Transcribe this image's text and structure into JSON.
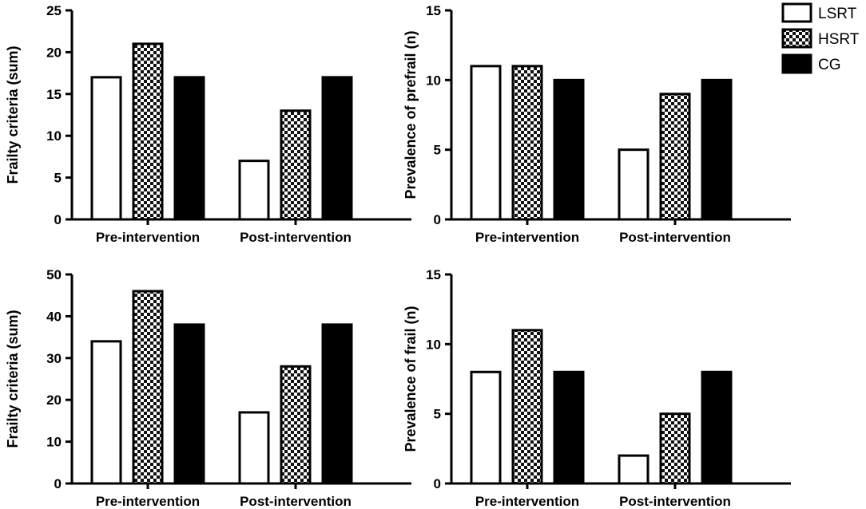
{
  "legend": [
    {
      "name": "LSRT",
      "pattern": "white"
    },
    {
      "name": "HSRT",
      "pattern": "checker"
    },
    {
      "name": "CG",
      "pattern": "black"
    }
  ],
  "chart_data": [
    {
      "type": "bar",
      "categories": [
        "Pre-intervention",
        "Post-intervention"
      ],
      "series": [
        {
          "name": "LSRT",
          "values": [
            17,
            7
          ]
        },
        {
          "name": "HSRT",
          "values": [
            21,
            13
          ]
        },
        {
          "name": "CG",
          "values": [
            17,
            17
          ]
        }
      ],
      "ylabel": "Frailty criteria (sum)",
      "xlabel": "",
      "ylim": [
        0,
        25
      ],
      "yticks": [
        0,
        5,
        10,
        15,
        20,
        25
      ],
      "grid": false
    },
    {
      "type": "bar",
      "categories": [
        "Pre-intervention",
        "Post-intervention"
      ],
      "series": [
        {
          "name": "LSRT",
          "values": [
            11,
            5
          ]
        },
        {
          "name": "HSRT",
          "values": [
            11,
            9
          ]
        },
        {
          "name": "CG",
          "values": [
            10,
            10
          ]
        }
      ],
      "ylabel": "Prevalence of prefrail (n)",
      "xlabel": "",
      "ylim": [
        0,
        15
      ],
      "yticks": [
        0,
        5,
        10,
        15
      ],
      "grid": false
    },
    {
      "type": "bar",
      "categories": [
        "Pre-intervention",
        "Post-intervention"
      ],
      "series": [
        {
          "name": "LSRT",
          "values": [
            34,
            17
          ]
        },
        {
          "name": "HSRT",
          "values": [
            46,
            28
          ]
        },
        {
          "name": "CG",
          "values": [
            38,
            38
          ]
        }
      ],
      "ylabel": "Frailty criteria (sum)",
      "xlabel": "",
      "ylim": [
        0,
        50
      ],
      "yticks": [
        0,
        10,
        20,
        30,
        40,
        50
      ],
      "grid": false
    },
    {
      "type": "bar",
      "categories": [
        "Pre-intervention",
        "Post-intervention"
      ],
      "series": [
        {
          "name": "LSRT",
          "values": [
            8,
            2
          ]
        },
        {
          "name": "HSRT",
          "values": [
            11,
            5
          ]
        },
        {
          "name": "CG",
          "values": [
            8,
            8
          ]
        }
      ],
      "ylabel": "Prevalence of frail (n)",
      "xlabel": "",
      "ylim": [
        0,
        15
      ],
      "yticks": [
        0,
        5,
        10,
        15
      ],
      "grid": false
    }
  ]
}
